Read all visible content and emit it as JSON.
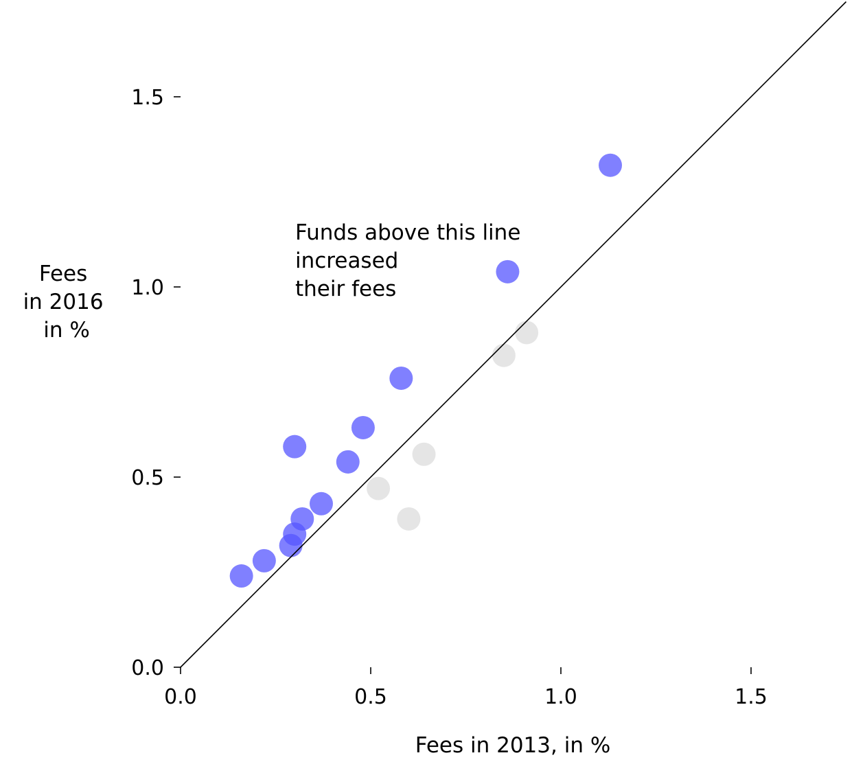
{
  "chart_data": {
    "type": "scatter",
    "title": "",
    "xlabel": "Fees in 2013, in %",
    "ylabel_lines": [
      "Fees",
      "in 2016",
      "in %"
    ],
    "xlim": [
      0.0,
      1.75
    ],
    "ylim": [
      0.0,
      1.75
    ],
    "xticks": [
      0.0,
      0.5,
      1.0,
      1.5
    ],
    "yticks": [
      0.0,
      0.5,
      1.0,
      1.5
    ],
    "xtick_labels": [
      "0.0",
      "0.5",
      "1.0",
      "1.5"
    ],
    "ytick_labels": [
      "0.0",
      "0.5",
      "1.0",
      "1.5"
    ],
    "grid": false,
    "reference_line": "y = x",
    "annotation_lines": [
      "Funds above this line",
      "increased",
      "their fees"
    ],
    "colors": {
      "increased": "#5555ff",
      "not_increased": "#dcdcdc",
      "line": "#000000"
    },
    "series": [
      {
        "group": "increased",
        "color": "#5555ff",
        "points": [
          {
            "x": 0.16,
            "y": 0.24
          },
          {
            "x": 0.22,
            "y": 0.28
          },
          {
            "x": 0.29,
            "y": 0.32
          },
          {
            "x": 0.3,
            "y": 0.35
          },
          {
            "x": 0.32,
            "y": 0.39
          },
          {
            "x": 0.37,
            "y": 0.43
          },
          {
            "x": 0.3,
            "y": 0.58
          },
          {
            "x": 0.44,
            "y": 0.54
          },
          {
            "x": 0.48,
            "y": 0.63
          },
          {
            "x": 0.58,
            "y": 0.76
          },
          {
            "x": 0.86,
            "y": 1.04
          },
          {
            "x": 1.13,
            "y": 1.32
          }
        ]
      },
      {
        "group": "not_increased",
        "color": "#dcdcdc",
        "points": [
          {
            "x": 0.52,
            "y": 0.47
          },
          {
            "x": 0.6,
            "y": 0.39
          },
          {
            "x": 0.64,
            "y": 0.56
          },
          {
            "x": 0.85,
            "y": 0.82
          },
          {
            "x": 0.91,
            "y": 0.88
          }
        ]
      }
    ]
  }
}
